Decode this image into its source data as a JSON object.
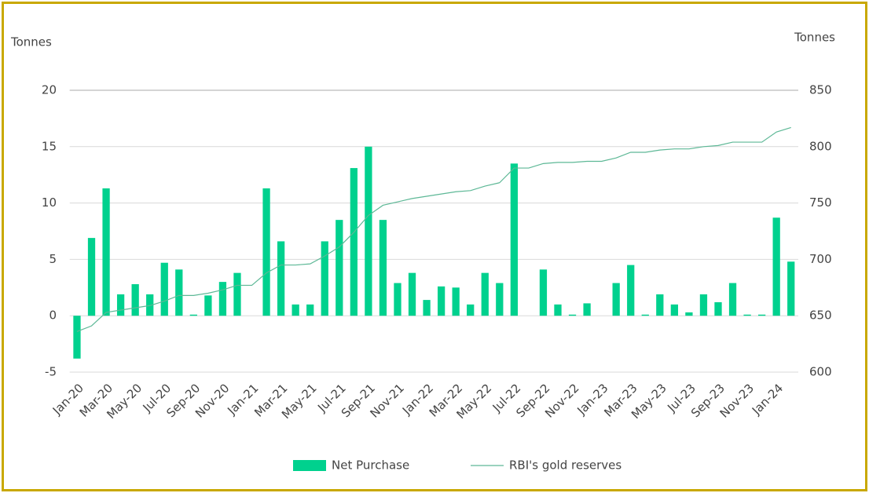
{
  "chart_data": {
    "type": "bar",
    "y_label": "Tonnes",
    "y2_label": "Tonnes",
    "categories": [
      "Jan-20",
      null,
      "Mar-20",
      null,
      "May-20",
      null,
      "Jul-20",
      null,
      "Sep-20",
      null,
      "Nov-20",
      null,
      "Jan-21",
      null,
      "Mar-21",
      null,
      "May-21",
      null,
      "Jul-21",
      null,
      "Sep-21",
      null,
      "Nov-21",
      null,
      "Jan-22",
      null,
      "Mar-22",
      null,
      "May-22",
      null,
      "Jul-22",
      null,
      "Sep-22",
      null,
      "Nov-22",
      null,
      "Jan-23",
      null,
      "Mar-23",
      null,
      "May-23",
      null,
      "Jul-23",
      null,
      "Sep-23",
      null,
      "Nov-23",
      null,
      "Jan-24",
      null
    ],
    "series": [
      {
        "name": "Net Purchase",
        "type": "bar",
        "color": "#00d18e",
        "values": [
          -3.8,
          6.9,
          11.3,
          1.9,
          2.8,
          1.9,
          4.7,
          4.1,
          0.1,
          1.8,
          3.0,
          3.8,
          0,
          11.3,
          6.6,
          1.0,
          1.0,
          6.6,
          8.5,
          13.1,
          15.0,
          8.5,
          2.9,
          3.8,
          1.4,
          2.6,
          2.5,
          1.0,
          3.8,
          2.9,
          13.5,
          0,
          4.1,
          1.0,
          0.1,
          1.1,
          0,
          2.9,
          4.5,
          0.1,
          1.9,
          1.0,
          0.3,
          1.9,
          1.2,
          2.9,
          0.1,
          0.1,
          8.7,
          4.8
        ]
      },
      {
        "name": "RBI's gold reserves",
        "type": "line",
        "axis": "y2",
        "color": "#5db896",
        "values": [
          636,
          641,
          653,
          655,
          657,
          659,
          663,
          668,
          668,
          670,
          673,
          677,
          677,
          688,
          695,
          695,
          696,
          703,
          711,
          724,
          739,
          748,
          751,
          754,
          756,
          758,
          760,
          761,
          765,
          768,
          781,
          781,
          785,
          786,
          786,
          787,
          787,
          790,
          795,
          795,
          797,
          798,
          798,
          800,
          801,
          804,
          804,
          804,
          813,
          817
        ]
      }
    ],
    "ylim": [
      -5,
      20
    ],
    "yticks": [
      -5,
      0,
      5,
      10,
      15,
      20
    ],
    "y2lim": [
      600,
      850
    ],
    "y2ticks": [
      600,
      650,
      700,
      750,
      800,
      850
    ],
    "grid": true,
    "legend": "bottom"
  }
}
